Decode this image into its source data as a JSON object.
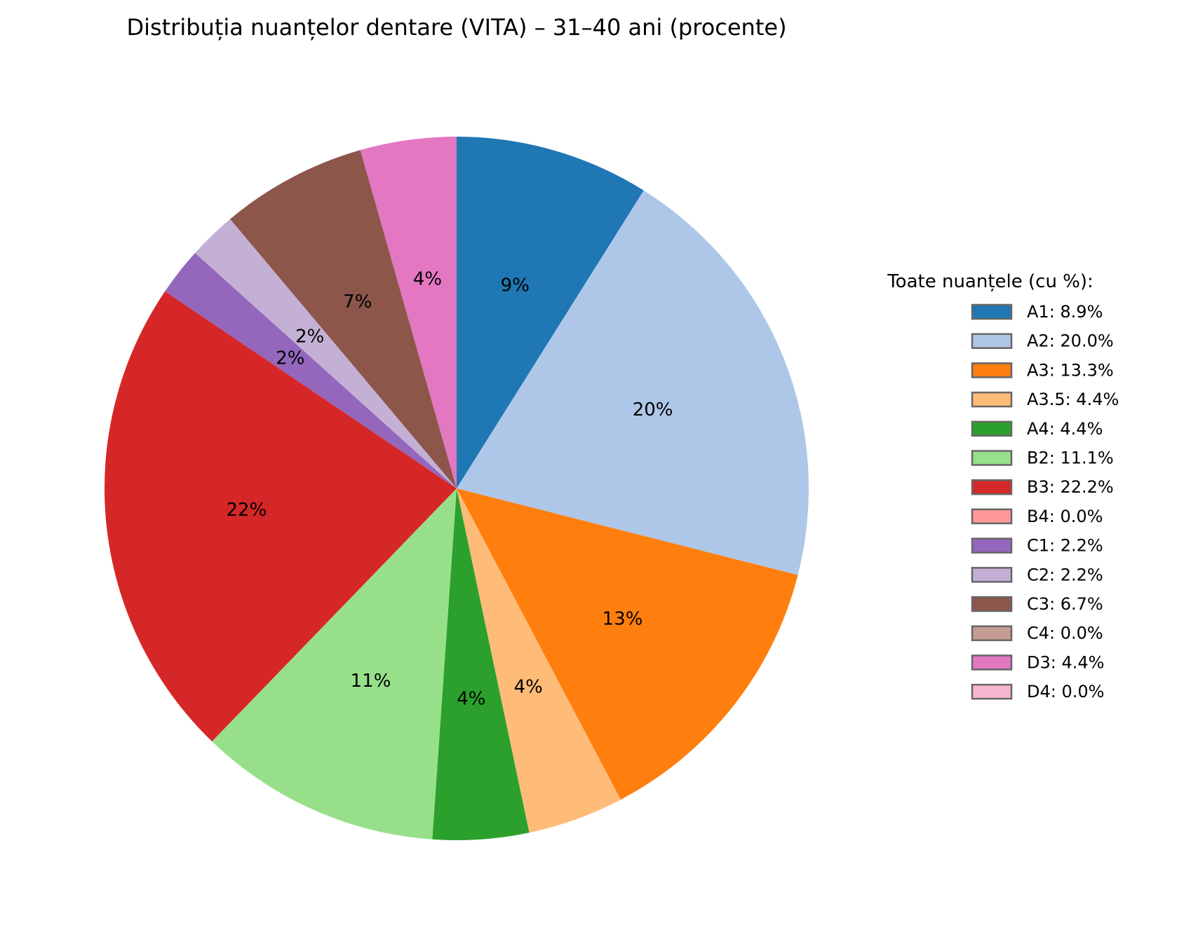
{
  "chart_data": {
    "type": "pie",
    "title": "Distribuția nuanțelor dentare (VITA) – 31–40 ani (procente)",
    "start_angle_deg": 90,
    "direction": "clockwise",
    "legend_title": "Toate nuanțele (cu %):",
    "legend_position": "right",
    "slices": [
      {
        "label": "A1",
        "value": 8.9,
        "color": "#1f77b4",
        "pct_label": "9%",
        "legend": "A1: 8.9%"
      },
      {
        "label": "A2",
        "value": 20.0,
        "color": "#aec7e8",
        "pct_label": "20%",
        "legend": "A2: 20.0%"
      },
      {
        "label": "A3",
        "value": 13.3,
        "color": "#ff7f0e",
        "pct_label": "13%",
        "legend": "A3: 13.3%"
      },
      {
        "label": "A3.5",
        "value": 4.4,
        "color": "#ffbb78",
        "pct_label": "4%",
        "legend": "A3.5: 4.4%"
      },
      {
        "label": "A4",
        "value": 4.4,
        "color": "#2ca02c",
        "pct_label": "4%",
        "legend": "A4: 4.4%"
      },
      {
        "label": "B2",
        "value": 11.1,
        "color": "#98df8a",
        "pct_label": "11%",
        "legend": "B2: 11.1%"
      },
      {
        "label": "B3",
        "value": 22.2,
        "color": "#d62728",
        "pct_label": "22%",
        "legend": "B3: 22.2%"
      },
      {
        "label": "B4",
        "value": 0.0,
        "color": "#ff9896",
        "pct_label": "",
        "legend": "B4: 0.0%"
      },
      {
        "label": "C1",
        "value": 2.2,
        "color": "#9467bd",
        "pct_label": "2%",
        "legend": "C1: 2.2%"
      },
      {
        "label": "C2",
        "value": 2.2,
        "color": "#c5b0d5",
        "pct_label": "2%",
        "legend": "C2: 2.2%"
      },
      {
        "label": "C3",
        "value": 6.7,
        "color": "#8c564b",
        "pct_label": "7%",
        "legend": "C3: 6.7%"
      },
      {
        "label": "C4",
        "value": 0.0,
        "color": "#c49c94",
        "pct_label": "",
        "legend": "C4: 0.0%"
      },
      {
        "label": "D3",
        "value": 4.4,
        "color": "#e377c2",
        "pct_label": "4%",
        "legend": "D3: 4.4%"
      },
      {
        "label": "D4",
        "value": 0.0,
        "color": "#f7b6d2",
        "pct_label": "",
        "legend": "D4: 0.0%"
      }
    ]
  }
}
